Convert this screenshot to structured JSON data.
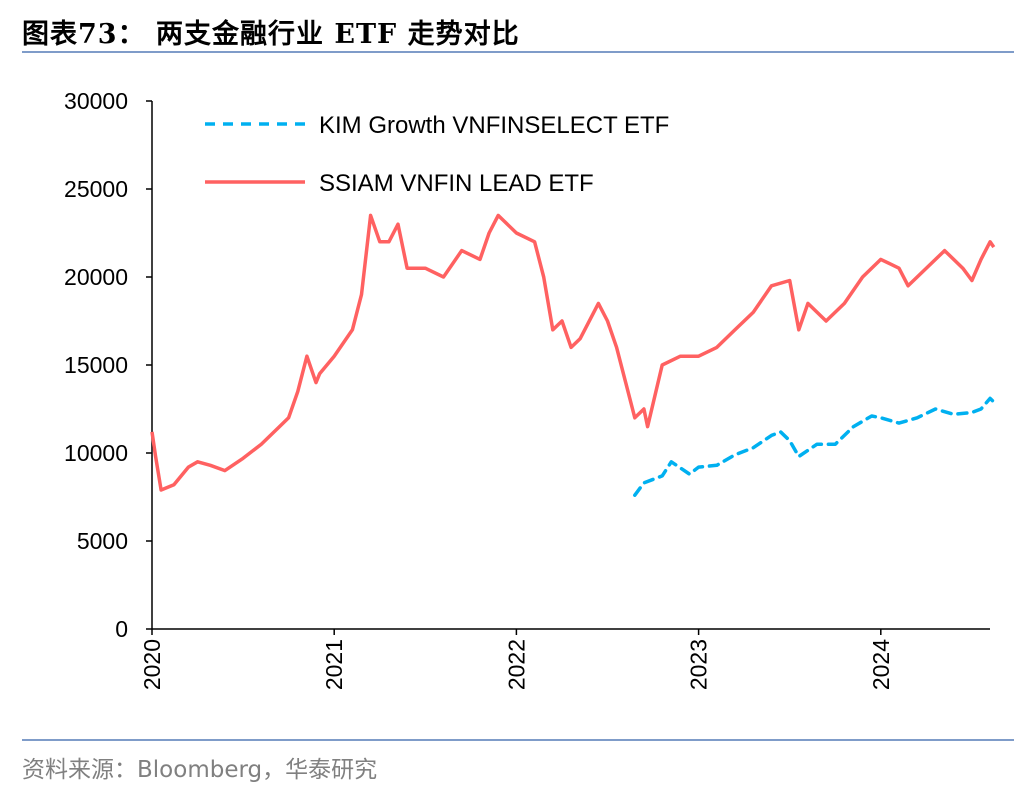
{
  "title": "图表73：  两支金融行业 ETF 走势对比",
  "source": "资料来源：Bloomberg，华泰研究",
  "chart_data": {
    "type": "line",
    "title": "",
    "xlabel": "",
    "ylabel": "",
    "xlim": [
      2020.0,
      2024.6
    ],
    "ylim": [
      0,
      30000
    ],
    "y_ticks": [
      "0",
      "5000",
      "10000",
      "15000",
      "20000",
      "25000",
      "30000"
    ],
    "x_ticks": [
      "2020",
      "2021",
      "2022",
      "2023",
      "2024"
    ],
    "grid": false,
    "legend_placement": "top-left",
    "series": [
      {
        "name": "KIM Growth VNFINSELECT ETF",
        "color": "#00B0F0",
        "style": "dashed",
        "x": [
          2022.65,
          2022.7,
          2022.8,
          2022.85,
          2022.95,
          2023.0,
          2023.1,
          2023.2,
          2023.3,
          2023.4,
          2023.45,
          2023.5,
          2023.55,
          2023.65,
          2023.75,
          2023.85,
          2023.95,
          2024.0,
          2024.1,
          2024.2,
          2024.3,
          2024.4,
          2024.5,
          2024.55,
          2024.6,
          2024.62
        ],
        "y": [
          7600,
          8300,
          8700,
          9500,
          8800,
          9200,
          9300,
          9900,
          10300,
          11000,
          11200,
          10700,
          9800,
          10500,
          10500,
          11500,
          12100,
          12000,
          11700,
          12000,
          12500,
          12200,
          12300,
          12500,
          13100,
          12900
        ]
      },
      {
        "name": "SSIAM VNFIN LEAD ETF",
        "color": "#FF6161",
        "style": "solid",
        "x": [
          2020.0,
          2020.02,
          2020.05,
          2020.12,
          2020.2,
          2020.25,
          2020.32,
          2020.4,
          2020.5,
          2020.6,
          2020.7,
          2020.75,
          2020.8,
          2020.85,
          2020.9,
          2020.92,
          2021.0,
          2021.1,
          2021.15,
          2021.2,
          2021.25,
          2021.3,
          2021.35,
          2021.4,
          2021.5,
          2021.6,
          2021.7,
          2021.8,
          2021.85,
          2021.9,
          2022.0,
          2022.1,
          2022.15,
          2022.2,
          2022.25,
          2022.3,
          2022.35,
          2022.45,
          2022.5,
          2022.55,
          2022.6,
          2022.65,
          2022.7,
          2022.72,
          2022.8,
          2022.9,
          2023.0,
          2023.1,
          2023.2,
          2023.3,
          2023.4,
          2023.5,
          2023.55,
          2023.6,
          2023.7,
          2023.8,
          2023.9,
          2024.0,
          2024.1,
          2024.15,
          2024.3,
          2024.35,
          2024.45,
          2024.5,
          2024.55,
          2024.6,
          2024.62
        ],
        "y": [
          11200,
          9800,
          7900,
          8200,
          9200,
          9500,
          9300,
          9000,
          9700,
          10500,
          11500,
          12000,
          13500,
          15500,
          14000,
          14500,
          15500,
          17000,
          19000,
          23500,
          22000,
          22000,
          23000,
          20500,
          20500,
          20000,
          21500,
          21000,
          22500,
          23500,
          22500,
          22000,
          20000,
          17000,
          17500,
          16000,
          16500,
          18500,
          17500,
          16000,
          14000,
          12000,
          12500,
          11500,
          15000,
          15500,
          15500,
          16000,
          17000,
          18000,
          19500,
          19800,
          17000,
          18500,
          17500,
          18500,
          20000,
          21000,
          20500,
          19500,
          21000,
          21500,
          20500,
          19800,
          21000,
          22000,
          21700
        ]
      }
    ]
  }
}
